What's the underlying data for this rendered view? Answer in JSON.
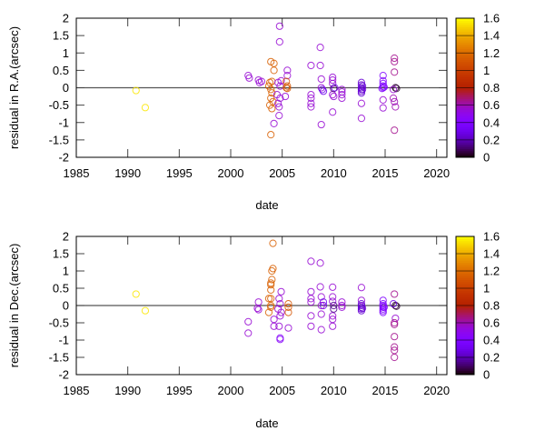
{
  "chart_data": [
    {
      "type": "scatter",
      "xlabel": "date",
      "ylabel": "residual in R.A.(arcsec)",
      "xlim": [
        1985,
        2021
      ],
      "ylim": [
        -2,
        2
      ],
      "xticks": [
        1985,
        1990,
        1995,
        2000,
        2005,
        2010,
        2015,
        2020
      ],
      "yticks": [
        -2,
        -1.5,
        -1,
        -0.5,
        0,
        0.5,
        1,
        1.5,
        2
      ],
      "zero_line": true,
      "marker": "open-circle",
      "colorbar": {
        "range": [
          0,
          1.6
        ],
        "ticks": [
          0,
          0.2,
          0.4,
          0.6,
          0.8,
          1,
          1.2,
          1.4,
          1.6
        ],
        "palette": "black-purple-red-yellow"
      },
      "points": [
        [
          1990.8,
          -0.08,
          1.55
        ],
        [
          1991.7,
          -0.57,
          1.55
        ],
        [
          2001.7,
          0.35,
          0.55
        ],
        [
          2001.8,
          0.28,
          0.55
        ],
        [
          2002.7,
          0.22,
          0.55
        ],
        [
          2002.8,
          0.15,
          0.55
        ],
        [
          2003.0,
          0.18,
          0.55
        ],
        [
          2003.9,
          0.75,
          1.15
        ],
        [
          2004.2,
          0.7,
          1.15
        ],
        [
          2004.2,
          0.5,
          1.15
        ],
        [
          2003.8,
          0.15,
          1.15
        ],
        [
          2004.0,
          0.18,
          1.15
        ],
        [
          2003.9,
          -0.05,
          1.15
        ],
        [
          2004.0,
          -0.15,
          1.15
        ],
        [
          2003.9,
          -0.3,
          1.15
        ],
        [
          2004.1,
          -0.4,
          1.15
        ],
        [
          2003.8,
          -0.5,
          1.15
        ],
        [
          2004.0,
          -0.6,
          1.15
        ],
        [
          2003.9,
          -1.35,
          1.15
        ],
        [
          2003.7,
          0.05,
          1.15
        ],
        [
          2004.75,
          1.77,
          0.55
        ],
        [
          2004.75,
          1.32,
          0.55
        ],
        [
          2004.6,
          0.15,
          0.55
        ],
        [
          2004.8,
          0.05,
          0.55
        ],
        [
          2004.5,
          -0.2,
          0.55
        ],
        [
          2004.8,
          -0.3,
          0.55
        ],
        [
          2004.6,
          -0.45,
          0.55
        ],
        [
          2004.7,
          -0.55,
          0.55
        ],
        [
          2004.2,
          -1.03,
          0.55
        ],
        [
          2004.7,
          -0.8,
          0.55
        ],
        [
          2004.9,
          0.2,
          0.55
        ],
        [
          2005.3,
          -0.25,
          0.55
        ],
        [
          2005.5,
          0.35,
          0.55
        ],
        [
          2005.5,
          0.5,
          0.55
        ],
        [
          2005.4,
          0.18,
          1.1
        ],
        [
          2005.5,
          0.05,
          1.1
        ],
        [
          2005.4,
          0.0,
          1.1
        ],
        [
          2005.5,
          -0.02,
          1.1
        ],
        [
          2007.8,
          0.64,
          0.55
        ],
        [
          2007.8,
          -0.2,
          0.55
        ],
        [
          2007.8,
          -0.3,
          0.55
        ],
        [
          2007.8,
          -0.45,
          0.55
        ],
        [
          2007.8,
          -0.55,
          0.55
        ],
        [
          2008.7,
          1.16,
          0.55
        ],
        [
          2008.7,
          0.64,
          0.55
        ],
        [
          2008.8,
          0.25,
          0.55
        ],
        [
          2008.8,
          -1.06,
          0.55
        ],
        [
          2008.8,
          0.0,
          0.55
        ],
        [
          2008.9,
          -0.05,
          0.3
        ],
        [
          2009.0,
          -0.1,
          0.3
        ],
        [
          2009.9,
          0.3,
          0.55
        ],
        [
          2009.9,
          0.22,
          0.55
        ],
        [
          2009.9,
          0.12,
          0.55
        ],
        [
          2009.9,
          -0.7,
          0.55
        ],
        [
          2009.9,
          -0.2,
          0.55
        ],
        [
          2010.0,
          -0.25,
          0.55
        ],
        [
          2010.0,
          -0.02,
          0.1
        ],
        [
          2010.1,
          0.0,
          0.3
        ],
        [
          2010.8,
          -0.05,
          0.55
        ],
        [
          2010.8,
          -0.12,
          0.55
        ],
        [
          2010.8,
          -0.2,
          0.55
        ],
        [
          2010.8,
          -0.3,
          0.55
        ],
        [
          2012.7,
          0.15,
          0.25
        ],
        [
          2012.7,
          0.08,
          0.25
        ],
        [
          2012.7,
          0.0,
          0.25
        ],
        [
          2012.7,
          -0.05,
          0.25
        ],
        [
          2012.7,
          -0.1,
          0.25
        ],
        [
          2012.7,
          -0.15,
          0.25
        ],
        [
          2012.8,
          -0.05,
          0.25
        ],
        [
          2012.8,
          0.05,
          0.25
        ],
        [
          2012.7,
          -0.88,
          0.55
        ],
        [
          2012.7,
          -0.45,
          0.55
        ],
        [
          2014.8,
          0.35,
          0.4
        ],
        [
          2014.8,
          0.2,
          0.4
        ],
        [
          2014.8,
          0.12,
          0.4
        ],
        [
          2014.8,
          0.05,
          0.4
        ],
        [
          2014.8,
          0.0,
          0.4
        ],
        [
          2014.9,
          0.02,
          0.4
        ],
        [
          2014.7,
          -0.02,
          0.4
        ],
        [
          2014.8,
          -0.35,
          0.55
        ],
        [
          2014.8,
          -0.58,
          0.55
        ],
        [
          2015.9,
          0.85,
          0.65
        ],
        [
          2015.9,
          0.75,
          0.65
        ],
        [
          2015.9,
          0.45,
          0.65
        ],
        [
          2016.0,
          0.0,
          0.05
        ],
        [
          2016.1,
          -0.02,
          0.05
        ],
        [
          2015.8,
          -0.05,
          0.55
        ],
        [
          2015.8,
          -0.3,
          0.6
        ],
        [
          2015.9,
          -0.4,
          0.6
        ],
        [
          2016.0,
          -0.55,
          0.6
        ],
        [
          2015.9,
          -1.22,
          0.65
        ]
      ]
    },
    {
      "type": "scatter",
      "xlabel": "date",
      "ylabel": "residual in Dec.(arcsec)",
      "xlim": [
        1985,
        2021
      ],
      "ylim": [
        -2,
        2
      ],
      "xticks": [
        1985,
        1990,
        1995,
        2000,
        2005,
        2010,
        2015,
        2020
      ],
      "yticks": [
        -2,
        -1.5,
        -1,
        -0.5,
        0,
        0.5,
        1,
        1.5,
        2
      ],
      "zero_line": true,
      "marker": "open-circle",
      "colorbar": {
        "range": [
          0,
          1.6
        ],
        "ticks": [
          0,
          0.2,
          0.4,
          0.6,
          0.8,
          1,
          1.2,
          1.4,
          1.6
        ],
        "palette": "black-purple-red-yellow"
      },
      "points": [
        [
          1990.8,
          0.33,
          1.55
        ],
        [
          1991.7,
          -0.15,
          1.55
        ],
        [
          2001.7,
          -0.47,
          0.55
        ],
        [
          2001.7,
          -0.8,
          0.55
        ],
        [
          2002.7,
          0.1,
          0.55
        ],
        [
          2002.6,
          -0.08,
          0.55
        ],
        [
          2002.7,
          -0.12,
          0.55
        ],
        [
          2004.1,
          1.8,
          1.15
        ],
        [
          2004.1,
          1.07,
          1.15
        ],
        [
          2004.0,
          1.0,
          1.15
        ],
        [
          2003.9,
          0.65,
          1.15
        ],
        [
          2003.9,
          0.6,
          1.15
        ],
        [
          2003.9,
          0.45,
          1.15
        ],
        [
          2003.7,
          0.2,
          1.15
        ],
        [
          2003.9,
          0.2,
          1.15
        ],
        [
          2003.9,
          0.0,
          1.15
        ],
        [
          2003.9,
          -0.05,
          1.15
        ],
        [
          2003.7,
          -0.2,
          1.15
        ],
        [
          2004.0,
          0.75,
          1.15
        ],
        [
          2004.2,
          -0.4,
          0.55
        ],
        [
          2004.2,
          -0.6,
          0.55
        ],
        [
          2004.8,
          -0.94,
          0.45
        ],
        [
          2004.8,
          -0.98,
          0.45
        ],
        [
          2004.9,
          0.4,
          0.55
        ],
        [
          2004.7,
          0.2,
          0.55
        ],
        [
          2004.8,
          0.05,
          0.55
        ],
        [
          2004.6,
          -0.1,
          0.55
        ],
        [
          2004.9,
          -0.2,
          0.55
        ],
        [
          2004.7,
          -0.6,
          0.55
        ],
        [
          2004.8,
          -0.3,
          0.55
        ],
        [
          2005.6,
          0.05,
          1.1
        ],
        [
          2005.6,
          -0.05,
          1.1
        ],
        [
          2005.6,
          -0.2,
          1.1
        ],
        [
          2005.6,
          -0.65,
          0.55
        ],
        [
          2007.8,
          1.28,
          0.55
        ],
        [
          2007.8,
          0.4,
          0.55
        ],
        [
          2007.8,
          0.2,
          0.55
        ],
        [
          2007.8,
          0.1,
          0.55
        ],
        [
          2007.8,
          -0.3,
          0.55
        ],
        [
          2007.8,
          -0.6,
          0.55
        ],
        [
          2008.7,
          1.23,
          0.55
        ],
        [
          2008.7,
          0.54,
          0.55
        ],
        [
          2008.8,
          0.25,
          0.55
        ],
        [
          2008.8,
          -0.25,
          0.55
        ],
        [
          2008.8,
          -0.7,
          0.55
        ],
        [
          2009.0,
          0.1,
          0.3
        ],
        [
          2009.0,
          0.0,
          0.3
        ],
        [
          2008.8,
          0.0,
          0.55
        ],
        [
          2009.9,
          0.53,
          0.55
        ],
        [
          2009.9,
          0.25,
          0.55
        ],
        [
          2009.9,
          0.12,
          0.55
        ],
        [
          2009.9,
          -0.3,
          0.55
        ],
        [
          2009.9,
          -0.4,
          0.55
        ],
        [
          2009.9,
          -0.6,
          0.55
        ],
        [
          2010.0,
          0.0,
          0.15
        ],
        [
          2010.0,
          -0.1,
          0.15
        ],
        [
          2010.8,
          0.1,
          0.55
        ],
        [
          2010.8,
          0.0,
          0.55
        ],
        [
          2010.8,
          -0.05,
          0.55
        ],
        [
          2012.7,
          0.52,
          0.55
        ],
        [
          2012.7,
          0.15,
          0.55
        ],
        [
          2012.7,
          0.05,
          0.25
        ],
        [
          2012.7,
          0.0,
          0.25
        ],
        [
          2012.7,
          -0.05,
          0.25
        ],
        [
          2012.7,
          -0.1,
          0.25
        ],
        [
          2012.8,
          -0.08,
          0.25
        ],
        [
          2012.7,
          -0.15,
          0.25
        ],
        [
          2014.8,
          0.15,
          0.4
        ],
        [
          2014.8,
          0.05,
          0.4
        ],
        [
          2014.8,
          0.0,
          0.4
        ],
        [
          2014.8,
          -0.05,
          0.4
        ],
        [
          2014.8,
          -0.1,
          0.4
        ],
        [
          2014.8,
          -0.15,
          0.4
        ],
        [
          2014.8,
          -0.2,
          0.4
        ],
        [
          2014.9,
          -0.05,
          0.4
        ],
        [
          2015.9,
          0.33,
          0.65
        ],
        [
          2016.0,
          -0.37,
          0.55
        ],
        [
          2015.9,
          -0.5,
          0.65
        ],
        [
          2015.9,
          -0.55,
          0.65
        ],
        [
          2015.9,
          -0.9,
          0.65
        ],
        [
          2015.9,
          -1.2,
          0.65
        ],
        [
          2015.9,
          -1.3,
          0.65
        ],
        [
          2015.9,
          -1.5,
          0.65
        ],
        [
          2016.0,
          0.0,
          0.05
        ],
        [
          2016.1,
          -0.02,
          0.05
        ],
        [
          2015.8,
          0.05,
          0.3
        ]
      ]
    }
  ]
}
